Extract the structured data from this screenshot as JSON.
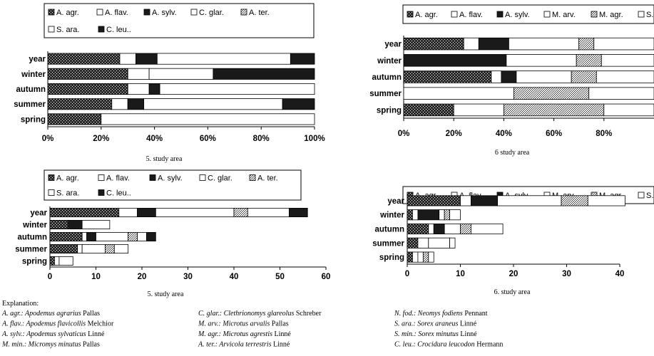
{
  "chart_data": [
    {
      "type": "bar",
      "orientation": "horizontal",
      "stacked": true,
      "normalized": true,
      "caption": "5. study area",
      "categories": [
        "year",
        "winter",
        "autumn",
        "summer",
        "spring"
      ],
      "xlim": [
        0,
        100
      ],
      "xticks": [
        "0%",
        "20%",
        "40%",
        "60%",
        "80%",
        "100%"
      ],
      "legend": [
        "A. agr.",
        "A. flav.",
        "A. sylv.",
        "C. glar.",
        "A. ter.",
        "S. ara.",
        "C. leu.."
      ],
      "series": [
        {
          "name": "A. agr.",
          "values": [
            27,
            30,
            30,
            24,
            20
          ]
        },
        {
          "name": "A. flav.",
          "values": [
            6,
            8,
            8,
            6,
            0
          ]
        },
        {
          "name": "A. sylv.",
          "values": [
            8,
            0,
            4,
            6,
            0
          ]
        },
        {
          "name": "C. glar.",
          "values": [
            50,
            24,
            58,
            52,
            80
          ]
        },
        {
          "name": "A. ter.",
          "values": [
            0,
            0,
            0,
            0,
            0
          ]
        },
        {
          "name": "S. ara.",
          "values": [
            0,
            0,
            0,
            0,
            0
          ]
        },
        {
          "name": "C. leu..",
          "values": [
            9,
            38,
            0,
            12,
            0
          ]
        }
      ]
    },
    {
      "type": "bar",
      "orientation": "horizontal",
      "stacked": true,
      "normalized": true,
      "caption": "6 study area",
      "categories": [
        "year",
        "winter",
        "autumn",
        "summer",
        "spring"
      ],
      "xlim": [
        0,
        100
      ],
      "xticks": [
        "0%",
        "20%",
        "40%",
        "60%",
        "80%"
      ],
      "legend": [
        "A. agr.",
        "A. flav.",
        "A. sylv.",
        "M. arv.",
        "M. agr.",
        "S. ar"
      ],
      "series": [
        {
          "name": "A. agr.",
          "values": [
            24,
            0,
            35,
            0,
            20
          ]
        },
        {
          "name": "A. flav.",
          "values": [
            6,
            0,
            4,
            44,
            20
          ]
        },
        {
          "name": "A. sylv.",
          "values": [
            12,
            41,
            6,
            0,
            0
          ]
        },
        {
          "name": "M. arv.",
          "values": [
            28,
            28,
            22,
            0,
            0
          ]
        },
        {
          "name": "M. agr.",
          "values": [
            6,
            10,
            10,
            30,
            40
          ]
        },
        {
          "name": "S. ar",
          "values": [
            24,
            21,
            23,
            26,
            20
          ]
        }
      ]
    },
    {
      "type": "bar",
      "orientation": "horizontal",
      "stacked": true,
      "caption": "5. study area",
      "categories": [
        "year",
        "winter",
        "autumn",
        "summer",
        "spring"
      ],
      "xlim": [
        0,
        60
      ],
      "xticks": [
        "0",
        "10",
        "20",
        "30",
        "40",
        "50",
        "60"
      ],
      "legend": [
        "A. agr.",
        "A. flav.",
        "A. sylv.",
        "C. glar.",
        "A. ter.",
        "S. ara.",
        "C. leu.."
      ],
      "series": [
        {
          "name": "A. agr.",
          "values": [
            15,
            4,
            7,
            6,
            1
          ]
        },
        {
          "name": "A. flav.",
          "values": [
            4,
            0,
            1,
            1,
            1
          ]
        },
        {
          "name": "A. sylv.",
          "values": [
            4,
            3,
            2,
            0,
            0
          ]
        },
        {
          "name": "C. glar.",
          "values": [
            17,
            0,
            7,
            5,
            3
          ]
        },
        {
          "name": "A. ter.",
          "values": [
            3,
            0,
            2,
            2,
            0
          ]
        },
        {
          "name": "S. ara.",
          "values": [
            9,
            6,
            2,
            3,
            0
          ]
        },
        {
          "name": "C. leu..",
          "values": [
            4,
            0,
            2,
            0,
            0
          ]
        }
      ]
    },
    {
      "type": "bar",
      "orientation": "horizontal",
      "stacked": true,
      "caption": "6. study area",
      "categories": [
        "year",
        "winter",
        "autumn",
        "summer",
        "spring"
      ],
      "xlim": [
        0,
        40
      ],
      "xticks": [
        "0",
        "10",
        "20",
        "30",
        "40"
      ],
      "legend": [
        "A. agr.",
        "A. flav.",
        "A. sylv.",
        "M. arv.",
        "M. agr.",
        "S. ar"
      ],
      "series": [
        {
          "name": "A. agr.",
          "values": [
            10,
            1,
            4,
            2,
            1
          ]
        },
        {
          "name": "A. flav.",
          "values": [
            2,
            1,
            1,
            2,
            1
          ]
        },
        {
          "name": "A. sylv.",
          "values": [
            5,
            4,
            2,
            0,
            0
          ]
        },
        {
          "name": "M. arv.",
          "values": [
            12,
            1,
            3,
            4,
            1
          ]
        },
        {
          "name": "M. agr.",
          "values": [
            5,
            1,
            2,
            0,
            1
          ]
        },
        {
          "name": "S. ar",
          "values": [
            7,
            2,
            6,
            1,
            1
          ]
        }
      ]
    }
  ],
  "explanation": {
    "title": "Explanation:",
    "columns": [
      [
        {
          "abbr": "A. agr.:",
          "name": "Apodemus agrarius",
          "author": "Pallas"
        },
        {
          "abbr": "A. flav.:",
          "name": "Apodemus flavicollis",
          "author": "Melchior"
        },
        {
          "abbr": "A. sylv.:",
          "name": "Apodemus sylvaticus",
          "author": "Linné"
        },
        {
          "abbr": "M. min.:",
          "name": "Micromys minutus",
          "author": "Pallas"
        }
      ],
      [
        {
          "abbr": "C. glar.:",
          "name": "Clethrionomys glareolus",
          "author": "Schreber"
        },
        {
          "abbr": "M. arv.:",
          "name": "Microtus arvalis",
          "author": "Pallas"
        },
        {
          "abbr": "M. agr.:",
          "name": "Microtus agrestis",
          "author": "Linné"
        },
        {
          "abbr": "A. ter.:",
          "name": "Arvicola terrestris",
          "author": "Linné"
        }
      ],
      [
        {
          "abbr": "N. fod.:",
          "name": "Neomys fodiens",
          "author": "Pennant"
        },
        {
          "abbr": "S. ara.:",
          "name": "Sorex araneus",
          "author": "Linné"
        },
        {
          "abbr": "S. min.:",
          "name": "Sorex minutus",
          "author": "Linné"
        },
        {
          "abbr": "C. leu.:",
          "name": "Crocidura leucodon",
          "author": "Hermann"
        }
      ]
    ]
  },
  "colors": {
    "dark": "#1a1a1a",
    "light": "#ffffff",
    "stroke": "#000000"
  }
}
